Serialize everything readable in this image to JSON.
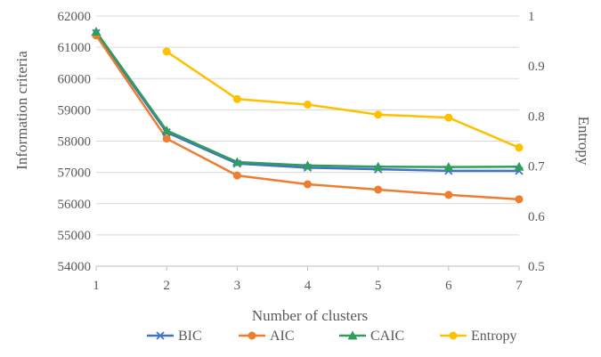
{
  "chart_data": {
    "type": "line",
    "x": [
      1,
      2,
      3,
      4,
      5,
      6,
      7
    ],
    "xlabel": "Number of clusters",
    "ylabel": "Information criteria",
    "y2label": "Entropy",
    "ylim": [
      54000,
      62000
    ],
    "y2lim": [
      0.5,
      1.0
    ],
    "yticks": [
      "54000",
      "55000",
      "56000",
      "57000",
      "58000",
      "59000",
      "60000",
      "61000",
      "62000"
    ],
    "y2ticks": [
      "0.5",
      "0.6",
      "0.7",
      "0.8",
      "0.9",
      "1"
    ],
    "xticks": [
      "1",
      "2",
      "3",
      "4",
      "5",
      "6",
      "7"
    ],
    "grid": true,
    "legend_position": "bottom",
    "series": [
      {
        "name": "BIC",
        "axis": "left",
        "color": "#4472C4",
        "marker": "x",
        "x": [
          1,
          2,
          3,
          4,
          5,
          6,
          7
        ],
        "values": [
          61450,
          58280,
          57280,
          57150,
          57100,
          57050,
          57050
        ]
      },
      {
        "name": "AIC",
        "axis": "left",
        "color": "#ED7D31",
        "marker": "circle",
        "x": [
          1,
          2,
          3,
          4,
          5,
          6,
          7
        ],
        "values": [
          61380,
          58080,
          56900,
          56620,
          56450,
          56280,
          56140
        ]
      },
      {
        "name": "CAIC",
        "axis": "left",
        "color": "#2E9E5B",
        "marker": "triangle",
        "x": [
          1,
          2,
          3,
          4,
          5,
          6,
          7
        ],
        "values": [
          61500,
          58340,
          57330,
          57220,
          57180,
          57170,
          57180
        ]
      },
      {
        "name": "Entropy",
        "axis": "right",
        "color": "#FFC000",
        "marker": "circle",
        "x": [
          2,
          3,
          4,
          5,
          6,
          7
        ],
        "values": [
          0.929,
          0.834,
          0.823,
          0.803,
          0.797,
          0.737
        ]
      }
    ]
  }
}
